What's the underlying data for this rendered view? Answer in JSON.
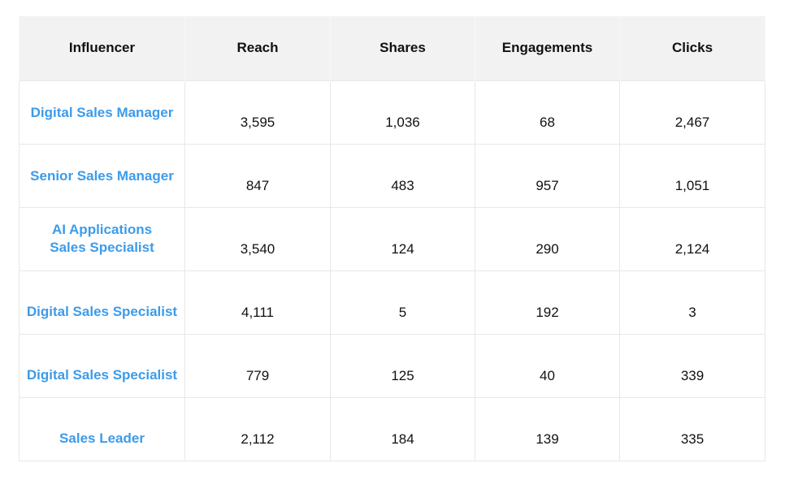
{
  "table": {
    "headers": [
      "Influencer",
      "Reach",
      "Shares",
      "Engagements",
      "Clicks"
    ],
    "rows": [
      {
        "influencer": [
          "Digital Sales Manager"
        ],
        "reach": "3,595",
        "shares": "1,036",
        "engagements": "68",
        "clicks": "2,467"
      },
      {
        "influencer": [
          "Senior Sales Manager"
        ],
        "reach": "847",
        "shares": "483",
        "engagements": "957",
        "clicks": "1,051"
      },
      {
        "influencer": [
          "AI Applications",
          "Sales Specialist"
        ],
        "reach": "3,540",
        "shares": "124",
        "engagements": "290",
        "clicks": "2,124"
      },
      {
        "influencer": [
          "Digital Sales Specialist"
        ],
        "reach": "4,111",
        "shares": "5",
        "engagements": "192",
        "clicks": "3"
      },
      {
        "influencer": [
          "Digital Sales Specialist"
        ],
        "reach": "779",
        "shares": "125",
        "engagements": "40",
        "clicks": "339"
      },
      {
        "influencer": [
          "Sales Leader"
        ],
        "reach": "2,112",
        "shares": "184",
        "engagements": "139",
        "clicks": "335"
      }
    ]
  },
  "colors": {
    "header_bg": "#f2f2f2",
    "influencer_text": "#3d9be9",
    "grid_line": "#e8e8e8",
    "body_text": "#111111"
  }
}
